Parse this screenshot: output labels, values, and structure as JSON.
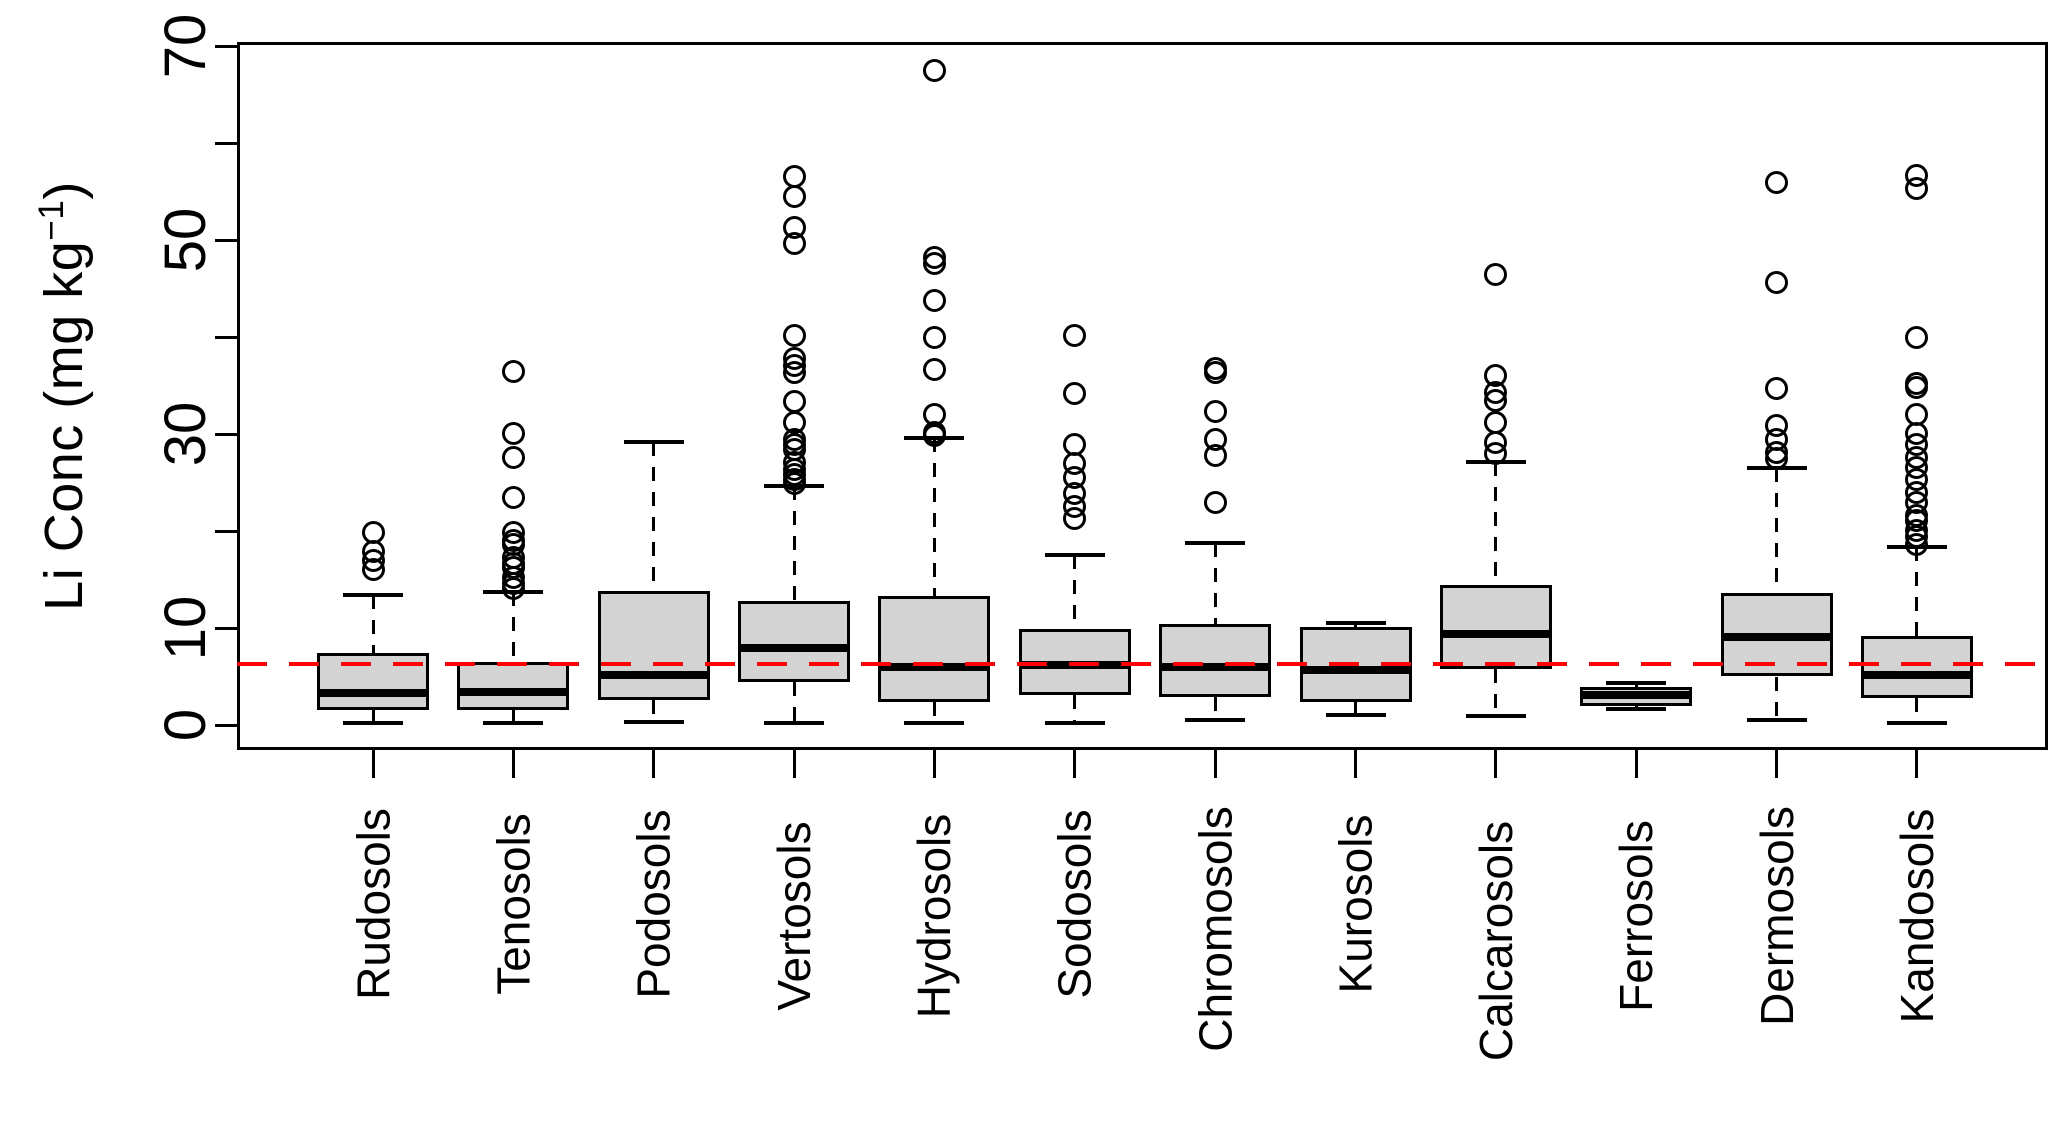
{
  "chart_data": {
    "type": "boxplot",
    "title": "",
    "ylabel_parts": {
      "main": "Li Conc (mg kg",
      "sup": "−1",
      "close": ")"
    },
    "xlabel": "",
    "ylim": [
      0,
      70
    ],
    "yticks": [
      0,
      10,
      20,
      30,
      40,
      50,
      60,
      70
    ],
    "ytick_labels_shown": [
      0,
      10,
      30,
      50,
      70
    ],
    "grid": "off",
    "legend": "none",
    "reference_line": {
      "value": 6.3,
      "color": "#FF0000",
      "style": "dashed",
      "label": ""
    },
    "box_fill": "#D3D3D3",
    "box_border": "#000000",
    "outlier_shape": "open-circle",
    "categories": [
      "Rudosols",
      "Tenosols",
      "Podosols",
      "Vertosols",
      "Hydrosols",
      "Sodosols",
      "Chromosols",
      "Kurosols",
      "Calcarosols",
      "Ferrosols",
      "Dermosols",
      "Kandosols"
    ],
    "series": [
      {
        "name": "Rudosols",
        "whisker_low": 0.2,
        "q1": 1.5,
        "median": 3.3,
        "q3": 7.4,
        "whisker_high": 13.4,
        "outliers": [
          16.0,
          17.0,
          17.9,
          19.8
        ]
      },
      {
        "name": "Tenosols",
        "whisker_low": 0.2,
        "q1": 1.5,
        "median": 3.4,
        "q3": 6.5,
        "whisker_high": 13.7,
        "outliers": [
          14.1,
          14.6,
          15.2,
          16.2,
          16.6,
          17.3,
          18.6,
          19.0,
          19.8,
          23.5,
          27.6,
          30.1,
          36.4
        ]
      },
      {
        "name": "Podosols",
        "whisker_low": 0.3,
        "q1": 2.6,
        "median": 5.2,
        "q3": 13.8,
        "whisker_high": 29.2,
        "outliers": []
      },
      {
        "name": "Vertosols",
        "whisker_low": 0.2,
        "q1": 4.4,
        "median": 7.9,
        "q3": 12.8,
        "whisker_high": 24.6,
        "outliers": [
          24.9,
          25.3,
          25.8,
          26.3,
          27.1,
          28.4,
          28.9,
          29.4,
          31.2,
          33.3,
          36.3,
          37.1,
          37.8,
          40.2,
          49.6,
          51.3,
          54.5,
          56.5
        ]
      },
      {
        "name": "Hydrosols",
        "whisker_low": 0.2,
        "q1": 2.4,
        "median": 6.0,
        "q3": 13.3,
        "whisker_high": 29.6,
        "outliers": [
          29.8,
          30.2,
          32.0,
          36.6,
          40.0,
          43.8,
          47.6,
          48.2,
          67.5
        ]
      },
      {
        "name": "Sodosols",
        "whisker_low": 0.2,
        "q1": 3.1,
        "median": 6.2,
        "q3": 9.9,
        "whisker_high": 17.5,
        "outliers": [
          21.3,
          22.5,
          23.9,
          25.5,
          27.0,
          28.9,
          34.2,
          40.2
        ]
      },
      {
        "name": "Chromosols",
        "whisker_low": 0.5,
        "q1": 2.9,
        "median": 6.0,
        "q3": 10.4,
        "whisker_high": 18.8,
        "outliers": [
          22.9,
          27.8,
          29.4,
          32.3,
          36.3,
          36.8
        ]
      },
      {
        "name": "Kurosols",
        "whisker_low": 1.0,
        "q1": 2.4,
        "median": 5.7,
        "q3": 10.1,
        "whisker_high": 10.5,
        "outliers": []
      },
      {
        "name": "Calcarosols",
        "whisker_low": 0.9,
        "q1": 5.8,
        "median": 9.4,
        "q3": 14.4,
        "whisker_high": 27.1,
        "outliers": [
          28.0,
          29.1,
          31.2,
          33.5,
          34.3,
          36.0,
          46.4
        ]
      },
      {
        "name": "Ferrosols",
        "whisker_low": 1.7,
        "q1": 2.0,
        "median": 3.1,
        "q3": 3.9,
        "whisker_high": 4.3,
        "outliers": []
      },
      {
        "name": "Dermosols",
        "whisker_low": 0.5,
        "q1": 5.0,
        "median": 9.1,
        "q3": 13.6,
        "whisker_high": 26.5,
        "outliers": [
          27.5,
          28.1,
          29.4,
          30.9,
          34.7,
          45.6,
          55.9
        ]
      },
      {
        "name": "Kandosols",
        "whisker_low": 0.2,
        "q1": 2.8,
        "median": 5.2,
        "q3": 9.2,
        "whisker_high": 18.3,
        "outliers": [
          18.6,
          19.4,
          20.1,
          21.1,
          21.6,
          22.9,
          24.0,
          25.3,
          26.5,
          27.6,
          28.9,
          30.1,
          32.0,
          34.8,
          35.2,
          39.9,
          55.3,
          56.6
        ]
      }
    ]
  }
}
